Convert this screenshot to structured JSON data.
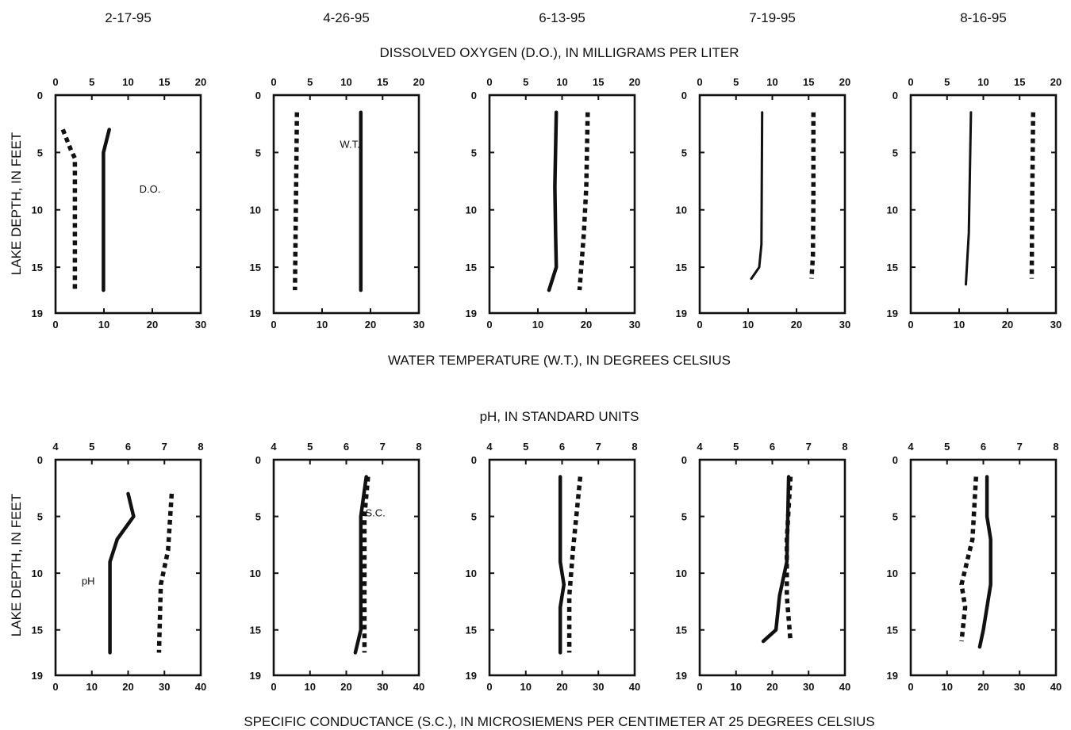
{
  "dates": [
    "2-17-95",
    "4-26-95",
    "6-13-95",
    "7-19-95",
    "8-16-95"
  ],
  "chart_data": [
    {
      "type": "line",
      "panel_group": "top",
      "title": "DISSOLVED OXYGEN (D.O.), IN MILLIGRAMS PER LITER",
      "xlabel_top": "DISSOLVED OXYGEN (D.O.), IN MILLIGRAMS PER LITER",
      "xlabel_bottom": "WATER TEMPERATURE (W.T.), IN DEGREES CELSIUS",
      "ylabel": "LAKE DEPTH, IN FEET",
      "top_axis": {
        "ticks": [
          "0",
          "5",
          "10",
          "15",
          "20"
        ],
        "range": [
          0,
          20
        ]
      },
      "bottom_axis": {
        "ticks": [
          "0",
          "10",
          "20",
          "30"
        ],
        "range": [
          0,
          30
        ]
      },
      "y_axis": {
        "ticks": [
          "0",
          "5",
          "10",
          "15",
          "19"
        ],
        "range": [
          0,
          19
        ],
        "inverted": true
      },
      "series_styles": {
        "DO": "solid",
        "WT": "dotted"
      },
      "panels": [
        {
          "date": "2-17-95",
          "label": "D.O.",
          "label_depth": 8.5,
          "label_x": 13,
          "DO": [
            [
              7.4,
              3.0
            ],
            [
              6.6,
              5.0
            ],
            [
              6.6,
              17.0
            ]
          ],
          "WT": [
            [
              1.5,
              3.0
            ],
            [
              3.2,
              4.8
            ],
            [
              4.0,
              5.5
            ],
            [
              4.0,
              17.0
            ]
          ]
        },
        {
          "date": "4-26-95",
          "label": "W.T.",
          "label_depth": 4.6,
          "label_x": 10.5,
          "DO": [
            [
              12.0,
              1.5
            ],
            [
              12.0,
              17.0
            ]
          ],
          "WT": [
            [
              4.8,
              1.5
            ],
            [
              4.4,
              17.0
            ]
          ]
        },
        {
          "date": "6-13-95",
          "label": null,
          "DO": [
            [
              9.2,
              1.5
            ],
            [
              9.0,
              8.0
            ],
            [
              9.1,
              12.0
            ],
            [
              9.2,
              15.0
            ],
            [
              8.2,
              17.0
            ]
          ],
          "WT": [
            [
              20.3,
              1.5
            ],
            [
              20.0,
              8.0
            ],
            [
              19.5,
              12.0
            ],
            [
              18.6,
              17.0
            ]
          ]
        },
        {
          "date": "7-19-95",
          "label": null,
          "DO": [
            [
              8.6,
              1.5
            ],
            [
              8.5,
              13.0
            ],
            [
              8.2,
              15.0
            ],
            [
              7.1,
              16.0
            ]
          ],
          "WT": [
            [
              23.5,
              1.5
            ],
            [
              23.5,
              9.0
            ],
            [
              23.4,
              14.0
            ],
            [
              23.1,
              16.0
            ]
          ]
        },
        {
          "date": "8-16-95",
          "label": null,
          "DO": [
            [
              8.3,
              1.5
            ],
            [
              8.0,
              12.0
            ],
            [
              7.6,
              16.5
            ]
          ],
          "WT": [
            [
              25.3,
              1.5
            ],
            [
              25.1,
              9.0
            ],
            [
              25.0,
              16.0
            ]
          ]
        }
      ]
    },
    {
      "type": "line",
      "panel_group": "bottom",
      "title": "pH, IN STANDARD UNITS",
      "xlabel_top": "pH, IN STANDARD UNITS",
      "xlabel_bottom": "SPECIFIC CONDUCTANCE (S.C.), IN MICROSIEMENS PER CENTIMETER AT 25 DEGREES CELSIUS",
      "ylabel": "LAKE DEPTH, IN FEET",
      "top_axis": {
        "ticks": [
          "4",
          "5",
          "6",
          "7",
          "8"
        ],
        "range": [
          4,
          8
        ]
      },
      "bottom_axis": {
        "ticks": [
          "0",
          "10",
          "20",
          "30",
          "40"
        ],
        "range": [
          0,
          40
        ]
      },
      "y_axis": {
        "ticks": [
          "0",
          "5",
          "10",
          "15",
          "19"
        ],
        "range": [
          0,
          19
        ],
        "inverted": true
      },
      "series_styles": {
        "pH": "solid",
        "SC": "dotted"
      },
      "panels": [
        {
          "date": "2-17-95",
          "label": "pH",
          "label_depth": 11,
          "label_x": 4.9,
          "pH": [
            [
              6.0,
              3.0
            ],
            [
              6.15,
              5.0
            ],
            [
              5.7,
              7.0
            ],
            [
              5.5,
              9.0
            ],
            [
              5.5,
              17.0
            ]
          ],
          "SC": [
            [
              32,
              3.0
            ],
            [
              31,
              8.0
            ],
            [
              29,
              11.0
            ],
            [
              28.5,
              17.0
            ]
          ]
        },
        {
          "date": "4-26-95",
          "label": "S.C.",
          "label_depth": 5,
          "label_x": 6.8,
          "pH": [
            [
              6.55,
              1.5
            ],
            [
              6.4,
              5.0
            ],
            [
              6.4,
              15.0
            ],
            [
              6.25,
              17.0
            ]
          ],
          "SC": [
            [
              26,
              1.5
            ],
            [
              25,
              5.0
            ],
            [
              25,
              15.0
            ],
            [
              25,
              17.0
            ]
          ]
        },
        {
          "date": "6-13-95",
          "label": null,
          "pH": [
            [
              5.95,
              1.5
            ],
            [
              5.95,
              9.0
            ],
            [
              6.05,
              11.0
            ],
            [
              5.95,
              13.0
            ],
            [
              5.95,
              17.0
            ]
          ],
          "SC": [
            [
              25,
              1.5
            ],
            [
              23,
              8.0
            ],
            [
              22,
              12.0
            ],
            [
              22,
              17.0
            ]
          ]
        },
        {
          "date": "7-19-95",
          "label": null,
          "pH": [
            [
              6.45,
              1.5
            ],
            [
              6.4,
              9.0
            ],
            [
              6.2,
              12.0
            ],
            [
              6.1,
              15.0
            ],
            [
              5.75,
              16.0
            ]
          ],
          "SC": [
            [
              25,
              1.5
            ],
            [
              24,
              7.0
            ],
            [
              24,
              12.0
            ],
            [
              25,
              16.0
            ]
          ]
        },
        {
          "date": "8-16-95",
          "label": null,
          "pH": [
            [
              6.1,
              1.5
            ],
            [
              6.1,
              5.0
            ],
            [
              6.2,
              7.0
            ],
            [
              6.2,
              11.0
            ],
            [
              6.0,
              15.0
            ],
            [
              5.9,
              16.5
            ]
          ],
          "SC": [
            [
              18,
              1.5
            ],
            [
              17,
              7.0
            ],
            [
              14,
              11.0
            ],
            [
              15,
              13.0
            ],
            [
              14,
              16.0
            ]
          ]
        }
      ]
    }
  ]
}
